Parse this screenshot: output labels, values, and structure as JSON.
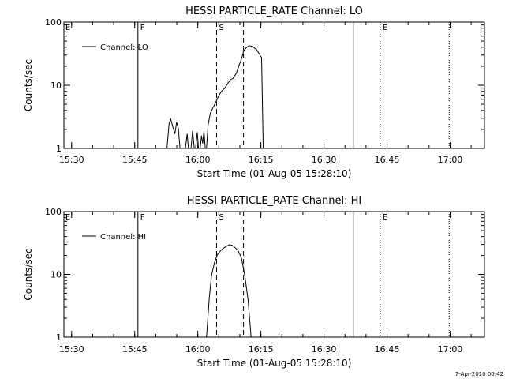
{
  "footer": {
    "timestamp": "7-Apr-2010 00:42"
  },
  "chart_data": [
    {
      "type": "line",
      "title": "HESSI PARTICLE_RATE Channel: LO",
      "xlabel": "Start Time (01-Aug-05 15:28:10)",
      "ylabel": "Counts/sec",
      "x_unit": "minutes after 15:28:10",
      "xlim": [
        0,
        100
      ],
      "ylim": [
        1,
        100
      ],
      "yscale": "log",
      "x_ticks": [
        {
          "x": 1.833,
          "label": "15:30"
        },
        {
          "x": 16.833,
          "label": "15:45"
        },
        {
          "x": 31.833,
          "label": "16:00"
        },
        {
          "x": 46.833,
          "label": "16:15"
        },
        {
          "x": 61.833,
          "label": "16:30"
        },
        {
          "x": 76.833,
          "label": "16:45"
        },
        {
          "x": 91.833,
          "label": "17:00"
        }
      ],
      "y_ticks": [
        {
          "y": 1,
          "label": "1"
        },
        {
          "y": 10,
          "label": "10"
        },
        {
          "y": 100,
          "label": "100"
        }
      ],
      "legend": {
        "placement": "top-left",
        "entries": [
          "Channel: LO"
        ]
      },
      "markers": [
        {
          "x": 17.6,
          "style": "solid",
          "label": "F"
        },
        {
          "x": 36.3,
          "style": "dashed",
          "label": "S"
        },
        {
          "x": 42.7,
          "style": "dashed",
          "label": ""
        },
        {
          "x": 68.8,
          "style": "solid",
          "label": ""
        },
        {
          "x": 75.2,
          "style": "dotted",
          "label": "E"
        },
        {
          "x": 91.6,
          "style": "dotted",
          "label": ""
        }
      ],
      "corner_label": "E",
      "series": [
        {
          "segments": [
            {
              "x": [
                24.5,
                25.0,
                25.4,
                25.9,
                26.4,
                26.8,
                27.2,
                27.6
              ],
              "y": [
                1,
                2.5,
                2.9,
                2.2,
                1.7,
                2.6,
                2.1,
                1
              ]
            },
            {
              "x": [
                28.9,
                29.3,
                29.6
              ],
              "y": [
                1,
                1.7,
                1
              ]
            },
            {
              "x": [
                30.2,
                30.6,
                31.0
              ],
              "y": [
                1,
                1.9,
                1
              ]
            },
            {
              "x": [
                31.3,
                31.7,
                32.0
              ],
              "y": [
                1,
                1.8,
                1
              ]
            },
            {
              "x": [
                32.4,
                32.7,
                33.0,
                33.3,
                33.6
              ],
              "y": [
                1,
                1.6,
                1.2,
                1.9,
                1
              ]
            },
            {
              "x": [
                33.9,
                34.3,
                34.8,
                35.3,
                36.0,
                36.8,
                37.5,
                38.2,
                39.0,
                39.6,
                40.2,
                41.0,
                41.6,
                42.2,
                42.8,
                43.4,
                44.0,
                44.8,
                45.8,
                47.0,
                47.4
              ],
              "y": [
                1,
                2.4,
                3.6,
                4.2,
                5.2,
                6.8,
                8.1,
                8.9,
                10.8,
                12.3,
                12.8,
                15.5,
                20.2,
                25.8,
                35.7,
                39.4,
                42.2,
                41.4,
                36.7,
                27.4,
                1
              ]
            }
          ]
        }
      ]
    },
    {
      "type": "line",
      "title": "HESSI PARTICLE_RATE Channel: HI",
      "xlabel": "Start Time (01-Aug-05 15:28:10)",
      "ylabel": "Counts/sec",
      "x_unit": "minutes after 15:28:10",
      "xlim": [
        0,
        100
      ],
      "ylim": [
        1,
        100
      ],
      "yscale": "log",
      "x_ticks": [
        {
          "x": 1.833,
          "label": "15:30"
        },
        {
          "x": 16.833,
          "label": "15:45"
        },
        {
          "x": 31.833,
          "label": "16:00"
        },
        {
          "x": 46.833,
          "label": "16:15"
        },
        {
          "x": 61.833,
          "label": "16:30"
        },
        {
          "x": 76.833,
          "label": "16:45"
        },
        {
          "x": 91.833,
          "label": "17:00"
        }
      ],
      "y_ticks": [
        {
          "y": 1,
          "label": "1"
        },
        {
          "y": 10,
          "label": "10"
        },
        {
          "y": 100,
          "label": "100"
        }
      ],
      "legend": {
        "placement": "top-left",
        "entries": [
          "Channel: HI"
        ]
      },
      "markers": [
        {
          "x": 17.6,
          "style": "solid",
          "label": "F"
        },
        {
          "x": 36.3,
          "style": "dashed",
          "label": "S"
        },
        {
          "x": 42.7,
          "style": "dashed",
          "label": ""
        },
        {
          "x": 68.8,
          "style": "solid",
          "label": ""
        },
        {
          "x": 75.2,
          "style": "dotted",
          "label": "E"
        },
        {
          "x": 91.6,
          "style": "dotted",
          "label": ""
        }
      ],
      "corner_label": "E",
      "series": [
        {
          "segments": [
            {
              "x": [
                33.9,
                34.2,
                34.6,
                35.1,
                35.8,
                36.5,
                37.4,
                38.4,
                39.4,
                40.0,
                40.6,
                41.4,
                42.2,
                43.0,
                43.8,
                44.5
              ],
              "y": [
                1,
                1.9,
                4.5,
                9.7,
                15.4,
                20.6,
                24.5,
                27.4,
                29.7,
                29.0,
                27.0,
                24.0,
                18.4,
                9.7,
                3.8,
                1
              ]
            }
          ]
        }
      ]
    }
  ]
}
